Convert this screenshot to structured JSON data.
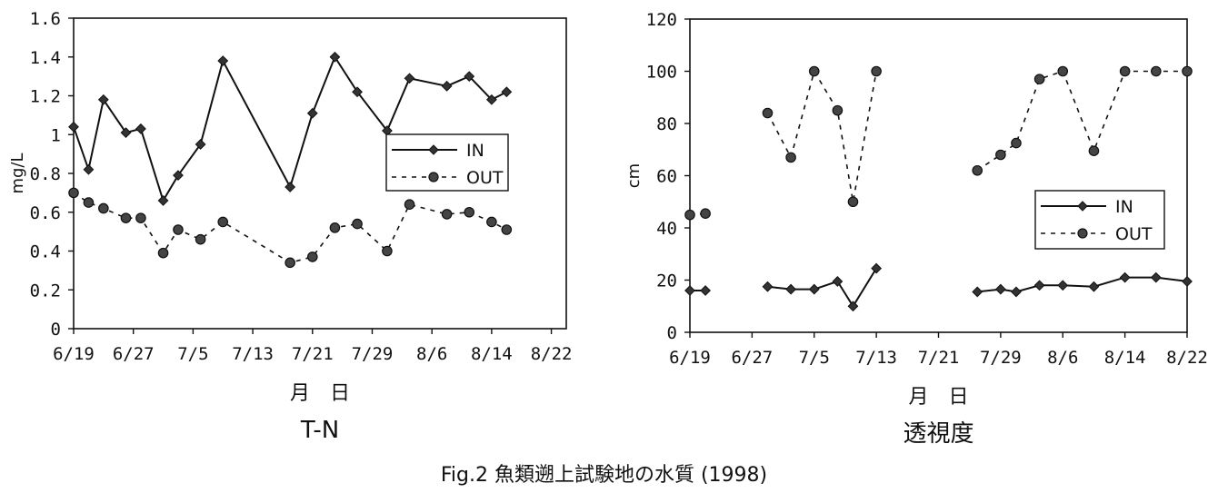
{
  "figure_caption": "Fig.2  魚類遡上試験地の水質 (1998)",
  "chart_data": [
    {
      "type": "line",
      "title": "T-N",
      "xlabel": "月 日",
      "ylabel": "mg/L",
      "ylim": [
        0,
        1.6
      ],
      "yticks": [
        "0",
        "0.2",
        "0.4",
        "0.6",
        "0.8",
        "1",
        "1.2",
        "1.4",
        "1.6"
      ],
      "xlim": [
        "6/19",
        "8/24"
      ],
      "xticks": [
        "6/19",
        "6/27",
        "7/5",
        "7/13",
        "7/21",
        "7/29",
        "8/6",
        "8/14",
        "8/22"
      ],
      "grid": false,
      "legend": "center-right",
      "series": [
        {
          "name": "IN",
          "style": "solid-diamond",
          "color": "#111111",
          "points": [
            [
              "6/19",
              1.04
            ],
            [
              "6/21",
              0.82
            ],
            [
              "6/23",
              1.18
            ],
            [
              "6/26",
              1.01
            ],
            [
              "6/28",
              1.03
            ],
            [
              "7/1",
              0.66
            ],
            [
              "7/3",
              0.79
            ],
            [
              "7/6",
              0.95
            ],
            [
              "7/9",
              1.38
            ],
            [
              "7/18",
              0.73
            ],
            [
              "7/21",
              1.11
            ],
            [
              "7/24",
              1.4
            ],
            [
              "7/27",
              1.22
            ],
            [
              "7/31",
              1.02
            ],
            [
              "8/3",
              1.29
            ],
            [
              "8/8",
              1.25
            ],
            [
              "8/11",
              1.3
            ],
            [
              "8/14",
              1.18
            ],
            [
              "8/16",
              1.22
            ]
          ]
        },
        {
          "name": "OUT",
          "style": "dashed-circle",
          "color": "#111111",
          "points": [
            [
              "6/19",
              0.7
            ],
            [
              "6/21",
              0.65
            ],
            [
              "6/23",
              0.62
            ],
            [
              "6/26",
              0.57
            ],
            [
              "6/28",
              0.57
            ],
            [
              "7/1",
              0.39
            ],
            [
              "7/3",
              0.51
            ],
            [
              "7/6",
              0.46
            ],
            [
              "7/9",
              0.55
            ],
            [
              "7/18",
              0.34
            ],
            [
              "7/21",
              0.37
            ],
            [
              "7/24",
              0.52
            ],
            [
              "7/27",
              0.54
            ],
            [
              "7/31",
              0.4
            ],
            [
              "8/3",
              0.64
            ],
            [
              "8/8",
              0.59
            ],
            [
              "8/11",
              0.6
            ],
            [
              "8/14",
              0.55
            ],
            [
              "8/16",
              0.51
            ]
          ]
        }
      ]
    },
    {
      "type": "line",
      "title": "透視度",
      "xlabel": "月 日",
      "ylabel": "cm",
      "ylim": [
        0,
        120
      ],
      "yticks": [
        "0",
        "20",
        "40",
        "60",
        "80",
        "100",
        "120"
      ],
      "xlim": [
        "6/19",
        "8/22"
      ],
      "xticks": [
        "6/19",
        "6/27",
        "7/5",
        "7/13",
        "7/21",
        "7/29",
        "8/6",
        "8/14",
        "8/22"
      ],
      "grid": false,
      "legend": "center-right",
      "series": [
        {
          "name": "IN",
          "style": "solid-diamond",
          "color": "#111111",
          "points": [
            [
              "6/19",
              16
            ],
            [
              "6/21",
              16
            ],
            null,
            [
              "6/29",
              17.5
            ],
            [
              "7/2",
              16.5
            ],
            [
              "7/5",
              16.5
            ],
            [
              "7/8",
              19.5
            ],
            [
              "7/10",
              10
            ],
            [
              "7/13",
              24.5
            ],
            null,
            [
              "7/26",
              15.5
            ],
            [
              "7/29",
              16.5
            ],
            [
              "7/31",
              15.5
            ],
            [
              "8/3",
              18
            ],
            [
              "8/6",
              18
            ],
            [
              "8/10",
              17.5
            ],
            [
              "8/14",
              21
            ],
            [
              "8/18",
              21
            ],
            [
              "8/22",
              19.5
            ]
          ]
        },
        {
          "name": "OUT",
          "style": "dashed-circle",
          "color": "#111111",
          "points": [
            [
              "6/19",
              45
            ],
            [
              "6/21",
              45.5
            ],
            null,
            [
              "6/29",
              84
            ],
            [
              "7/2",
              67
            ],
            [
              "7/5",
              100
            ],
            [
              "7/8",
              85
            ],
            [
              "7/10",
              50
            ],
            [
              "7/13",
              100
            ],
            null,
            [
              "7/26",
              62
            ],
            [
              "7/29",
              68
            ],
            [
              "7/31",
              72.5
            ],
            [
              "8/3",
              97
            ],
            [
              "8/6",
              100
            ],
            [
              "8/10",
              69.5
            ],
            [
              "8/14",
              100
            ],
            [
              "8/18",
              100
            ],
            [
              "8/22",
              100
            ]
          ]
        }
      ]
    }
  ]
}
